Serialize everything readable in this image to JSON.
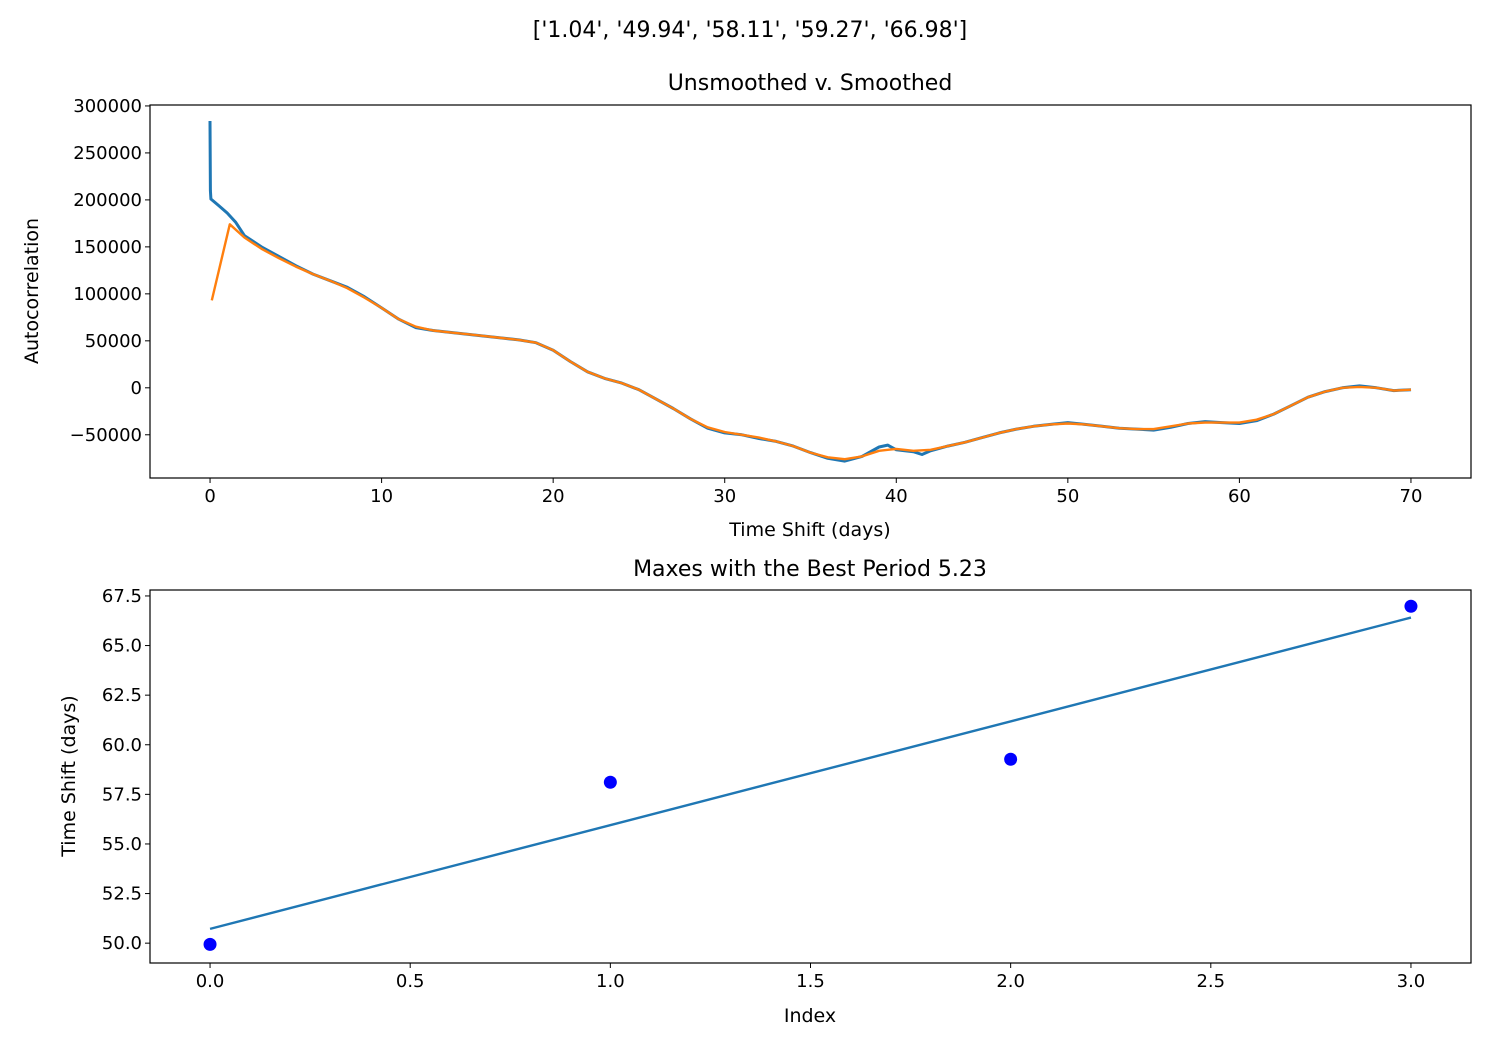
{
  "figure": {
    "suptitle": "['1.04', '49.94', '58.11', '59.27', '66.98']"
  },
  "colors": {
    "raw": "#1f77b4",
    "smooth": "#ff7f0e",
    "fit": "#1f77b4",
    "points": "#0000ff"
  },
  "chart_data": [
    {
      "type": "line",
      "title": "Unsmoothed v. Smoothed",
      "xlabel": "Time Shift (days)",
      "ylabel": "Autocorrelation",
      "xlim": [
        -3.5,
        73.5
      ],
      "ylim": [
        -96000,
        301000
      ],
      "xticks": [
        0,
        10,
        20,
        30,
        40,
        50,
        60,
        70
      ],
      "xtick_labels": [
        "0",
        "10",
        "20",
        "30",
        "40",
        "50",
        "60",
        "70"
      ],
      "yticks": [
        300000,
        250000,
        200000,
        150000,
        100000,
        50000,
        0,
        -50000
      ],
      "ytick_labels": [
        "300000",
        "250000",
        "200000",
        "150000",
        "100000",
        "50000",
        "0",
        "−50000"
      ],
      "grid": false,
      "series": [
        {
          "x": [
            0,
            0.02,
            0.05,
            0.5,
            1,
            1.5,
            2,
            3,
            4,
            5,
            6,
            7,
            8,
            9,
            10,
            11,
            12,
            13,
            14,
            15,
            16,
            17,
            18,
            19,
            20,
            21,
            22,
            23,
            24,
            25,
            26,
            27,
            28,
            29,
            30,
            31,
            32,
            33,
            34,
            35,
            36,
            37,
            38,
            39,
            39.5,
            40,
            41,
            41.5,
            42,
            43,
            44,
            45,
            46,
            47,
            48,
            49,
            50,
            51,
            52,
            53,
            54,
            55,
            56,
            57,
            58,
            59,
            60,
            61,
            62,
            63,
            64,
            65,
            66,
            67,
            68,
            69,
            70
          ],
          "y": [
            284000,
            210000,
            201000,
            194000,
            186000,
            176000,
            162000,
            150000,
            140000,
            130000,
            121000,
            114000,
            107000,
            97000,
            85000,
            73000,
            64000,
            61000,
            59000,
            57000,
            55000,
            53000,
            51000,
            48000,
            40000,
            28000,
            17000,
            10000,
            5000,
            -2000,
            -12000,
            -22000,
            -33000,
            -43000,
            -48000,
            -50000,
            -54000,
            -57000,
            -62000,
            -69000,
            -75000,
            -78000,
            -73000,
            -63000,
            -61000,
            -66000,
            -68000,
            -71000,
            -67000,
            -62000,
            -58000,
            -53000,
            -48000,
            -44000,
            -41000,
            -39000,
            -37000,
            -39000,
            -41000,
            -43000,
            -44000,
            -45000,
            -42000,
            -38000,
            -36000,
            -37000,
            -38000,
            -35000,
            -28000,
            -19000,
            -10000,
            -4000,
            0,
            2000,
            0,
            -3000,
            -2000
          ]
        },
        {
          "x": [
            0.1,
            1.15,
            2,
            3,
            4,
            5,
            6,
            7,
            8,
            9,
            10,
            11,
            12,
            13,
            14,
            15,
            16,
            17,
            18,
            19,
            20,
            21,
            22,
            23,
            24,
            25,
            26,
            27,
            28,
            29,
            30,
            31,
            32,
            33,
            34,
            35,
            36,
            37,
            38,
            39,
            40,
            41,
            42,
            43,
            44,
            45,
            46,
            47,
            48,
            49,
            50,
            51,
            52,
            53,
            54,
            55,
            56,
            57,
            58,
            59,
            60,
            61,
            62,
            63,
            64,
            65,
            66,
            67,
            68,
            69,
            70
          ],
          "y": [
            93000,
            174000,
            160000,
            148000,
            138000,
            129000,
            121000,
            114000,
            106000,
            96000,
            85000,
            73000,
            65000,
            61000,
            59000,
            57000,
            55000,
            53000,
            51000,
            48000,
            40000,
            28000,
            17000,
            10000,
            5000,
            -2000,
            -12000,
            -22000,
            -33000,
            -42000,
            -47000,
            -50000,
            -53000,
            -57000,
            -62000,
            -69000,
            -74000,
            -76000,
            -73000,
            -67000,
            -65000,
            -67000,
            -66000,
            -62000,
            -58000,
            -53000,
            -48000,
            -44000,
            -41000,
            -39000,
            -38000,
            -39000,
            -41000,
            -43000,
            -44000,
            -44000,
            -41000,
            -38000,
            -37000,
            -37000,
            -37000,
            -34000,
            -28000,
            -19000,
            -10000,
            -4000,
            0,
            1000,
            0,
            -3000,
            -2000
          ]
        }
      ]
    },
    {
      "type": "scatter",
      "title": "Maxes with the Best Period 5.23",
      "xlabel": "Index",
      "ylabel": "Time Shift (days)",
      "xlim": [
        -0.15,
        3.15
      ],
      "ylim": [
        49.0,
        67.8
      ],
      "xticks": [
        0,
        0.5,
        1,
        1.5,
        2,
        2.5,
        3
      ],
      "xtick_labels": [
        "0.0",
        "0.5",
        "1.0",
        "1.5",
        "2.0",
        "2.5",
        "3.0"
      ],
      "yticks": [
        50,
        52.5,
        55,
        57.5,
        60,
        62.5,
        65,
        67.5
      ],
      "ytick_labels": [
        "50.0",
        "52.5",
        "55.0",
        "57.5",
        "60.0",
        "62.5",
        "65.0",
        "67.5"
      ],
      "grid": false,
      "points": {
        "x": [
          0,
          1,
          2,
          3
        ],
        "y": [
          49.94,
          58.11,
          59.27,
          66.98
        ]
      },
      "fit_line": {
        "x": [
          0,
          3
        ],
        "y": [
          50.72,
          66.41
        ]
      }
    }
  ]
}
